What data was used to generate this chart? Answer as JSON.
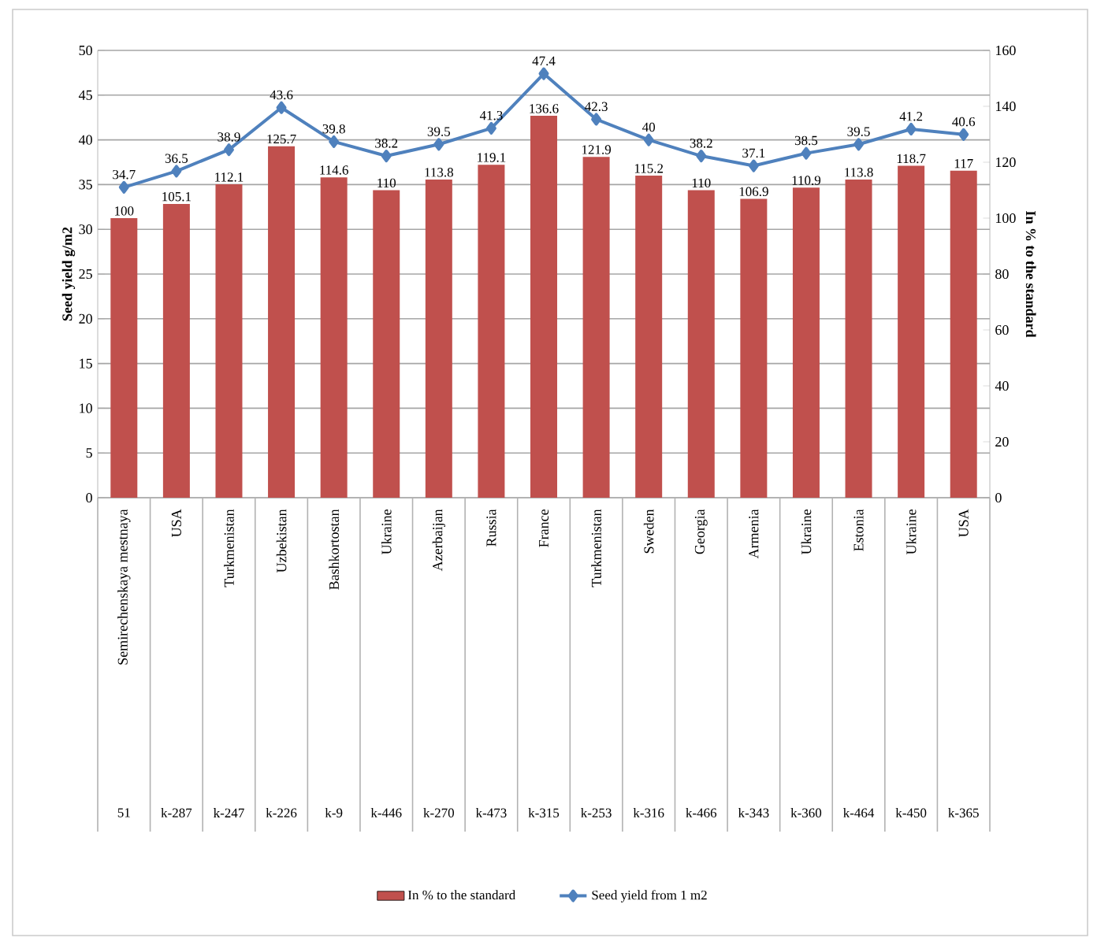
{
  "chart_data": {
    "type": "bar",
    "categories": [
      "Semirechenskaya mestnaya",
      "USA",
      "Turkmenistan",
      "Uzbekistan",
      "Bashkortostan",
      "Ukraine",
      "Azerbaijan",
      "Russia",
      "France",
      "Turkmenistan",
      "Sweden",
      "Georgia",
      "Armenia",
      "Ukraine",
      "Estonia",
      "Ukraine",
      "USA"
    ],
    "annotations": [
      "51",
      "k-287",
      "k-247",
      "k-226",
      "k-9",
      "k-446",
      "k-270",
      "k-473",
      "k-315",
      "k-253",
      "k-316",
      "k-466",
      "k-343",
      "k-360",
      "k-464",
      "k-450",
      "k-365"
    ],
    "ylabel": "Seed yield g/m2",
    "y2label": "In % to the standard",
    "ylim": [
      0,
      50
    ],
    "yticks": [
      0,
      5,
      10,
      15,
      20,
      25,
      30,
      35,
      40,
      45,
      50
    ],
    "y2lim": [
      0,
      160
    ],
    "y2ticks": [
      0,
      20,
      40,
      60,
      80,
      100,
      120,
      140,
      160
    ],
    "grid": "y",
    "legend": "bottom",
    "data_labels": true,
    "marker": "diamond",
    "series": [
      {
        "name": "In % to the standard",
        "axis": "y2",
        "color": "#c0504d",
        "values": [
          100,
          105.1,
          112.1,
          125.7,
          114.6,
          110,
          113.8,
          119.1,
          136.6,
          121.9,
          115.2,
          110,
          106.9,
          110.9,
          113.8,
          118.7,
          117
        ]
      },
      {
        "name": "Seed yield from 1 m2",
        "type": "line",
        "color": "#4f81bd",
        "values": [
          34.7,
          36.5,
          38.9,
          43.6,
          39.8,
          38.2,
          39.5,
          41.3,
          47.4,
          42.3,
          40,
          38.2,
          37.1,
          38.5,
          39.5,
          41.2,
          40.6
        ]
      }
    ]
  }
}
